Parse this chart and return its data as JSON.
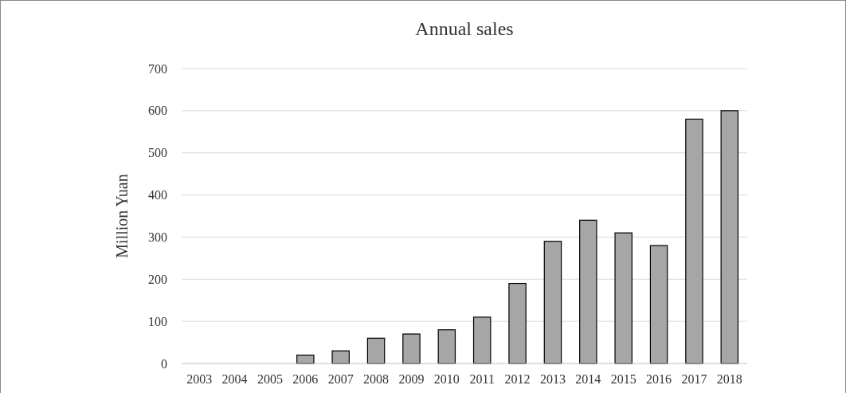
{
  "chart_data": {
    "type": "bar",
    "title": "Annual sales",
    "ylabel": "Million Yuan",
    "categories": [
      "2003",
      "2004",
      "2005",
      "2006",
      "2007",
      "2008",
      "2009",
      "2010",
      "2011",
      "2012",
      "2013",
      "2014",
      "2015",
      "2016",
      "2017",
      "2018"
    ],
    "values": [
      0,
      0,
      0,
      20,
      30,
      60,
      70,
      80,
      110,
      190,
      290,
      340,
      310,
      280,
      580,
      600
    ],
    "color": "#a6a6a6",
    "ylim": [
      0,
      700
    ],
    "yticks": [
      0,
      100,
      200,
      300,
      400,
      500,
      600,
      700
    ],
    "grid": "y"
  }
}
